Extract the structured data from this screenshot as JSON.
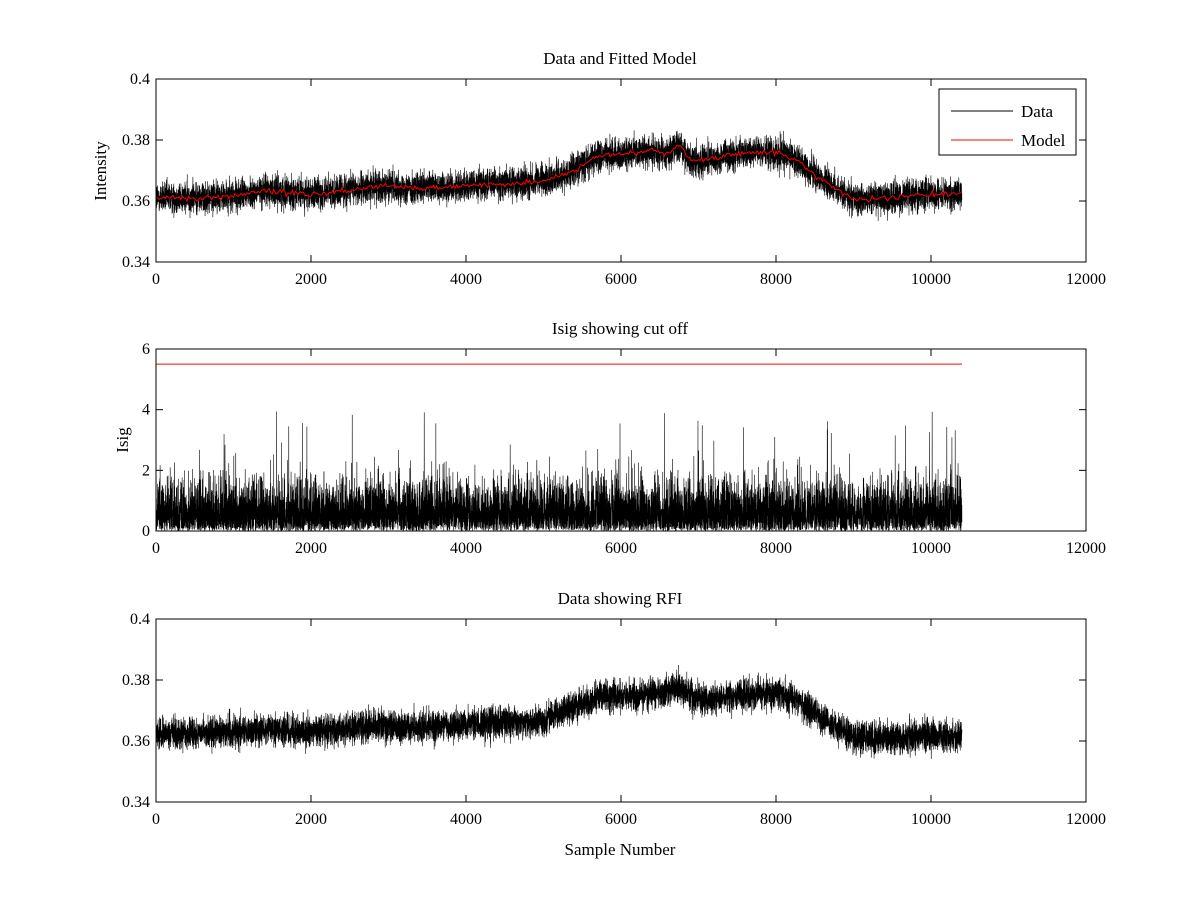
{
  "figure": {
    "background": "#ffffff",
    "data_color": "#000000",
    "model_color": "#ff0000"
  },
  "chart_data": [
    {
      "type": "line",
      "title": "Data and Fitted Model",
      "xlabel": "",
      "ylabel": "Intensity",
      "xlim": [
        0,
        12000
      ],
      "ylim": [
        0.34,
        0.4
      ],
      "xticks": [
        0,
        2000,
        4000,
        6000,
        8000,
        10000,
        12000
      ],
      "xtick_labels": [
        "0",
        "2000",
        "4000",
        "6000",
        "8000",
        "10000",
        "12000"
      ],
      "yticks": [
        0.34,
        0.36,
        0.38,
        0.4
      ],
      "ytick_labels": [
        "0.34",
        "0.36",
        "0.38",
        "0.4"
      ],
      "grid": false,
      "legend": {
        "placement": "top-right",
        "entries": [
          "Data",
          "Model"
        ]
      },
      "n_samples": 10400,
      "series": [
        {
          "name": "Data",
          "color": "#000000",
          "style": "noisy",
          "baseline_x": [
            0,
            400,
            1000,
            1400,
            2000,
            2900,
            3400,
            4000,
            5000,
            5300,
            5700,
            6400,
            6600,
            6750,
            6900,
            7100,
            7700,
            8100,
            8300,
            8700,
            9000,
            9500,
            9800,
            10400
          ],
          "baseline_y": [
            0.361,
            0.361,
            0.3615,
            0.3635,
            0.362,
            0.365,
            0.364,
            0.365,
            0.3665,
            0.369,
            0.3745,
            0.3765,
            0.3755,
            0.3785,
            0.373,
            0.3735,
            0.376,
            0.3755,
            0.3725,
            0.365,
            0.3605,
            0.361,
            0.362,
            0.3625
          ],
          "noise_amplitude": 0.0065,
          "spike_min": 0.348,
          "spike_max": 0.387
        },
        {
          "name": "Model",
          "color": "#ff0000",
          "style": "smooth",
          "x": [
            0,
            400,
            1000,
            1400,
            2000,
            2900,
            3400,
            4000,
            5000,
            5300,
            5700,
            6400,
            6600,
            6750,
            6900,
            7100,
            7700,
            8100,
            8300,
            8700,
            9000,
            9500,
            9800,
            10400
          ],
          "y": [
            0.361,
            0.361,
            0.3615,
            0.3635,
            0.362,
            0.365,
            0.364,
            0.365,
            0.3665,
            0.369,
            0.3745,
            0.3765,
            0.3755,
            0.3785,
            0.373,
            0.3735,
            0.376,
            0.3755,
            0.3725,
            0.365,
            0.3605,
            0.361,
            0.362,
            0.3625
          ]
        }
      ]
    },
    {
      "type": "line",
      "title": "Isig showing cut off",
      "xlabel": "",
      "ylabel": "Isig",
      "xlim": [
        0,
        12000
      ],
      "ylim": [
        0,
        6
      ],
      "xticks": [
        0,
        2000,
        4000,
        6000,
        8000,
        10000,
        12000
      ],
      "xtick_labels": [
        "0",
        "2000",
        "4000",
        "6000",
        "8000",
        "10000",
        "12000"
      ],
      "yticks": [
        0,
        2,
        4,
        6
      ],
      "ytick_labels": [
        "0",
        "2",
        "4",
        "6"
      ],
      "grid": false,
      "n_samples": 10400,
      "series": [
        {
          "color": "#000000",
          "style": "abs-noise",
          "typical_max": 2.2,
          "peak_max": 4.0
        },
        {
          "color": "#ff0000",
          "style": "constant",
          "x": [
            0,
            10400
          ],
          "y": [
            5.5,
            5.5
          ]
        }
      ]
    },
    {
      "type": "line",
      "title": "Data showing RFI",
      "xlabel": "Sample Number",
      "ylabel": "",
      "xlim": [
        0,
        12000
      ],
      "ylim": [
        0.34,
        0.4
      ],
      "xticks": [
        0,
        2000,
        4000,
        6000,
        8000,
        10000,
        12000
      ],
      "xtick_labels": [
        "0",
        "2000",
        "4000",
        "6000",
        "8000",
        "10000",
        "12000"
      ],
      "yticks": [
        0.34,
        0.36,
        0.38,
        0.4
      ],
      "ytick_labels": [
        "0.34",
        "0.36",
        "0.38",
        "0.4"
      ],
      "grid": false,
      "n_samples": 10400,
      "series": [
        {
          "color": "#000000",
          "style": "noisy",
          "baseline_x": [
            0,
            400,
            1000,
            1400,
            2000,
            2900,
            3400,
            4000,
            5000,
            5300,
            5700,
            6400,
            6600,
            6750,
            6900,
            7100,
            7700,
            8100,
            8300,
            8700,
            9000,
            9500,
            9800,
            10400
          ],
          "baseline_y": [
            0.3625,
            0.3625,
            0.363,
            0.364,
            0.363,
            0.365,
            0.3645,
            0.3655,
            0.3665,
            0.3705,
            0.3745,
            0.3755,
            0.376,
            0.3775,
            0.3745,
            0.3735,
            0.3755,
            0.3755,
            0.373,
            0.3655,
            0.3615,
            0.361,
            0.3615,
            0.3615
          ],
          "noise_amplitude": 0.0065,
          "spike_min": 0.348,
          "spike_max": 0.387
        }
      ]
    }
  ]
}
